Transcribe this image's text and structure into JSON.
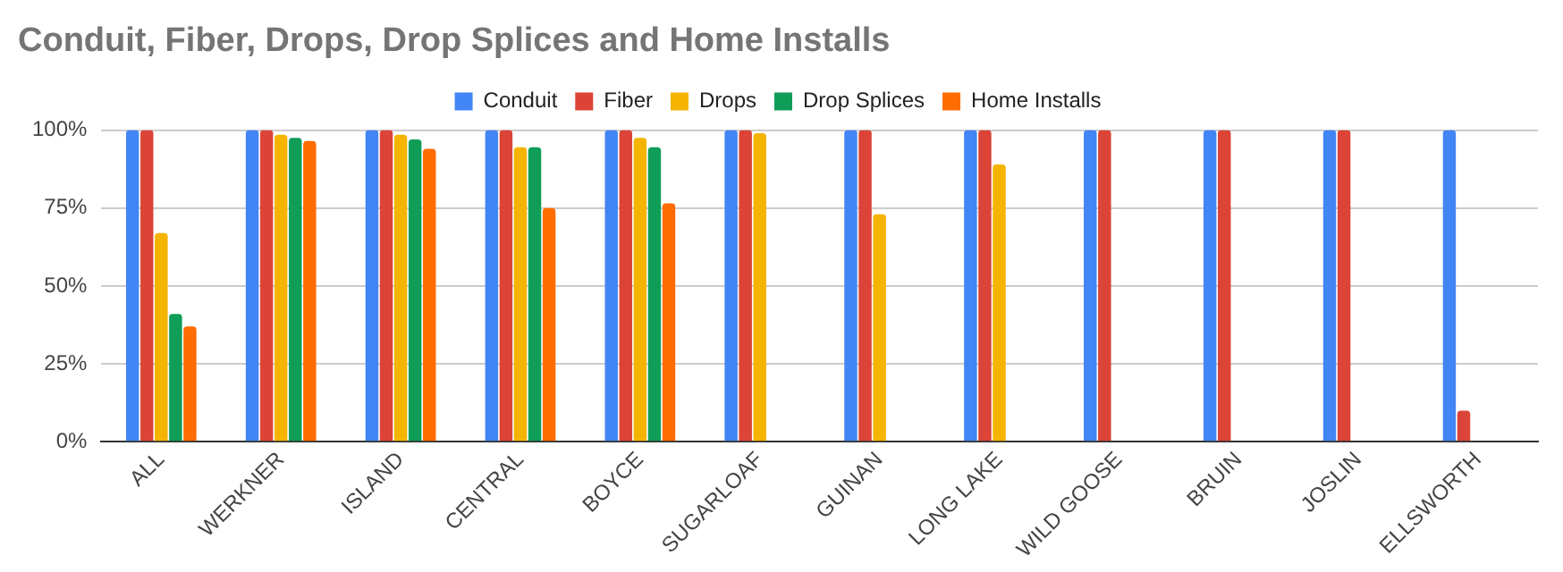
{
  "chart_data": {
    "type": "bar",
    "title": "Conduit, Fiber, Drops, Drop Splices and Home Installs",
    "categories": [
      "ALL",
      "WERKNER",
      "ISLAND",
      "CENTRAL",
      "BOYCE",
      "SUGARLOAF",
      "GUINAN",
      "LONG LAKE",
      "WILD GOOSE",
      "BRUIN",
      "JOSLIN",
      "ELLSWORTH"
    ],
    "series": [
      {
        "name": "Conduit",
        "color": "#4285f4",
        "values": [
          100,
          100,
          100,
          100,
          100,
          100,
          100,
          100,
          100,
          100,
          100,
          100
        ]
      },
      {
        "name": "Fiber",
        "color": "#db4437",
        "values": [
          100,
          100,
          100,
          100,
          100,
          100,
          100,
          100,
          100,
          100,
          100,
          10
        ]
      },
      {
        "name": "Drops",
        "color": "#f4b400",
        "values": [
          67,
          98.5,
          98.5,
          94.5,
          97.5,
          99,
          73,
          89,
          null,
          null,
          null,
          null
        ]
      },
      {
        "name": "Drop Splices",
        "color": "#0f9d58",
        "values": [
          41,
          97.5,
          97,
          94.5,
          94.5,
          null,
          null,
          null,
          null,
          null,
          null,
          null
        ]
      },
      {
        "name": "Home Installs",
        "color": "#ff6d00",
        "values": [
          37,
          96.5,
          94,
          75,
          76.5,
          null,
          null,
          null,
          null,
          null,
          null,
          null
        ]
      }
    ],
    "ylim": [
      0,
      100
    ],
    "yticks": [
      {
        "value": 0,
        "label": "0%"
      },
      {
        "value": 25,
        "label": "25%"
      },
      {
        "value": 50,
        "label": "50%"
      },
      {
        "value": 75,
        "label": "75%"
      },
      {
        "value": 100,
        "label": "100%"
      }
    ],
    "grid": "y",
    "legend": "top"
  }
}
